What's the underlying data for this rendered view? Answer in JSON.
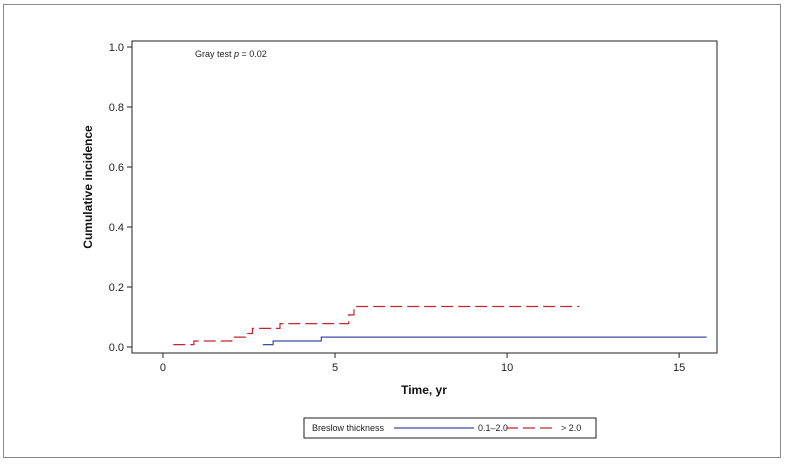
{
  "chart_data": {
    "type": "line",
    "xlabel": "Time, yr",
    "ylabel": "Cumulative incidence",
    "xlim": [
      -0.9,
      16.1
    ],
    "ylim": [
      -0.02,
      1.02
    ],
    "xticks": [
      0,
      5,
      10,
      15
    ],
    "xtick_labels": [
      "0",
      "5",
      "10",
      "15"
    ],
    "yticks": [
      0.0,
      0.2,
      0.4,
      0.6,
      0.8,
      1.0
    ],
    "ytick_labels": [
      "0.0",
      "0.2",
      "0.4",
      "0.6",
      "0.8",
      "1.0"
    ],
    "grid": false,
    "annotation": {
      "prefix": "Gray test ",
      "variable": "p",
      "suffix": " = 0.02"
    },
    "legend": {
      "title": "Breslow thickness",
      "placement": "bottom"
    },
    "series": [
      {
        "name": "0.1–2.0",
        "color": "#3b4aa8",
        "style": "solid",
        "steps": [
          [
            2.9,
            0.008
          ],
          [
            3.2,
            0.02
          ],
          [
            4.6,
            0.033
          ],
          [
            15.8,
            0.033
          ]
        ]
      },
      {
        "name": "> 2.0",
        "color": "#c1272d",
        "style": "dashed",
        "steps": [
          [
            0.3,
            0.008
          ],
          [
            0.9,
            0.02
          ],
          [
            2.0,
            0.033
          ],
          [
            2.4,
            0.045
          ],
          [
            2.6,
            0.062
          ],
          [
            3.4,
            0.078
          ],
          [
            5.4,
            0.107
          ],
          [
            5.55,
            0.135
          ],
          [
            12.1,
            0.135
          ]
        ]
      }
    ]
  }
}
